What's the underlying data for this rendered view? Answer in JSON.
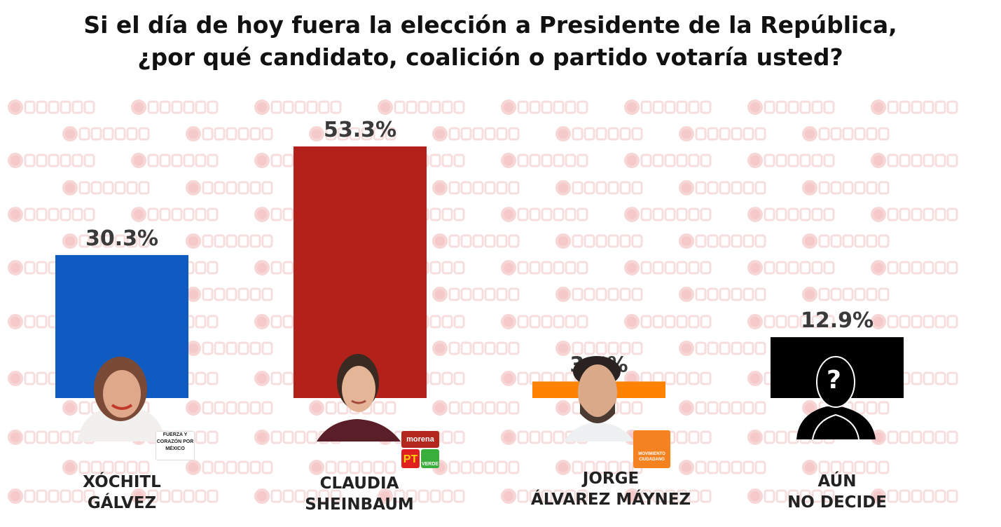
{
  "title_line1": "Si el día de hoy fuera la elección a Presidente de la República,",
  "title_line2": "¿por qué candidato, coalición o partido votaría usted?",
  "watermark": "RUBRUM",
  "chart_data": {
    "type": "bar",
    "title": "Si el día de hoy fuera la elección a Presidente de la República, ¿por qué candidato, coalición o partido votaría usted?",
    "categories": [
      "XÓCHITL GÁLVEZ",
      "CLAUDIA SHEINBAUM",
      "JORGE ÁLVAREZ MÁYNEZ",
      "AÚN NO DECIDE"
    ],
    "values": [
      30.3,
      53.3,
      3.5,
      12.9
    ],
    "labels": [
      "30.3%",
      "53.3%",
      "3.5%",
      "12.9%"
    ],
    "colors": [
      "#0f5bc2",
      "#b3211b",
      "#ff8200",
      "#000000"
    ],
    "unit": "%",
    "ylim": [
      0,
      53.3
    ],
    "grid": false,
    "legend": "none"
  },
  "candidates": [
    {
      "line1": "XÓCHITL",
      "line2": "GÁLVEZ",
      "logo": "FUERZA Y CORAZÓN POR MÉXICO"
    },
    {
      "line1": "CLAUDIA",
      "line2": "SHEINBAUM",
      "logos": [
        "morena",
        "PT",
        "VERDE"
      ]
    },
    {
      "line1": "JORGE",
      "line2": "ÁLVAREZ MÁYNEZ",
      "logo": "MOVIMIENTO CIUDADANO"
    },
    {
      "line1": "AÚN",
      "line2": "NO DECIDE",
      "icon": "?"
    }
  ]
}
